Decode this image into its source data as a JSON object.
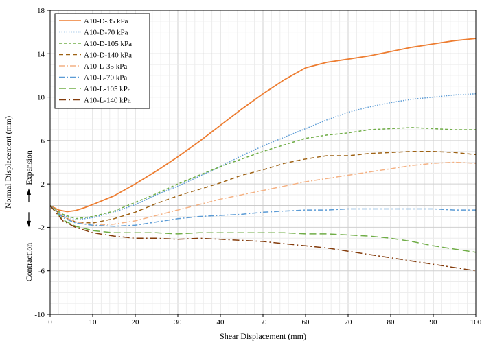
{
  "chart_data": {
    "type": "line",
    "title": "",
    "xlabel": "Shear Displacement (mm)",
    "ylabel": "Normal Displacement (mm)",
    "ylabel_expansion": "Expansion",
    "ylabel_contraction": "Contraction",
    "xlim": [
      0,
      100
    ],
    "ylim": [
      -10,
      18
    ],
    "x_ticks": [
      0,
      10,
      20,
      30,
      40,
      50,
      60,
      70,
      80,
      90,
      100
    ],
    "y_ticks": [
      -10,
      -6,
      -2,
      2,
      6,
      10,
      14,
      18
    ],
    "grid": true,
    "legend_position": "top-left",
    "series": [
      {
        "name": "A10-D-35 kPa",
        "color": "#ED7D31",
        "dash": "solid",
        "x": [
          0,
          2,
          4,
          6,
          8,
          10,
          15,
          20,
          25,
          30,
          35,
          40,
          45,
          50,
          55,
          60,
          65,
          70,
          75,
          80,
          85,
          90,
          95,
          100
        ],
        "y": [
          0,
          -0.4,
          -0.55,
          -0.45,
          -0.2,
          0.1,
          0.9,
          2.0,
          3.2,
          4.5,
          5.9,
          7.4,
          8.9,
          10.3,
          11.6,
          12.7,
          13.2,
          13.5,
          13.8,
          14.2,
          14.6,
          14.9,
          15.2,
          15.4
        ]
      },
      {
        "name": "A10-D-70 kPa",
        "color": "#5B9BD5",
        "dash": "dot",
        "x": [
          0,
          3,
          6,
          10,
          15,
          20,
          25,
          30,
          35,
          40,
          45,
          50,
          55,
          60,
          65,
          70,
          75,
          80,
          85,
          90,
          95,
          100
        ],
        "y": [
          0,
          -0.9,
          -1.3,
          -1.1,
          -0.6,
          0.1,
          1.0,
          1.8,
          2.7,
          3.6,
          4.6,
          5.5,
          6.3,
          7.1,
          7.9,
          8.6,
          9.1,
          9.5,
          9.8,
          10.0,
          10.2,
          10.3
        ]
      },
      {
        "name": "A10-D-105 kPa",
        "color": "#70AD47",
        "dash": "dash-short",
        "x": [
          0,
          3,
          6,
          10,
          15,
          20,
          25,
          30,
          35,
          40,
          45,
          50,
          55,
          60,
          65,
          70,
          75,
          80,
          85,
          90,
          95,
          100
        ],
        "y": [
          0,
          -0.8,
          -1.2,
          -1.0,
          -0.5,
          0.3,
          1.1,
          2.0,
          2.8,
          3.6,
          4.3,
          5.0,
          5.6,
          6.2,
          6.5,
          6.7,
          7.0,
          7.1,
          7.2,
          7.1,
          7.0,
          7.0
        ]
      },
      {
        "name": "A10-D-140 kPa",
        "color": "#9E6214",
        "dash": "dash",
        "x": [
          0,
          3,
          6,
          10,
          15,
          20,
          25,
          30,
          35,
          40,
          45,
          50,
          55,
          60,
          65,
          70,
          75,
          80,
          85,
          90,
          95,
          100
        ],
        "y": [
          0,
          -1.0,
          -1.5,
          -1.6,
          -1.2,
          -0.6,
          0.2,
          0.9,
          1.5,
          2.1,
          2.8,
          3.3,
          3.9,
          4.3,
          4.6,
          4.6,
          4.8,
          4.9,
          5.0,
          5.0,
          4.9,
          4.7
        ]
      },
      {
        "name": "A10-L-35 kPa",
        "color": "#F4B183",
        "dash": "dash-dot",
        "x": [
          0,
          3,
          6,
          10,
          15,
          20,
          25,
          30,
          35,
          40,
          45,
          50,
          55,
          60,
          65,
          70,
          75,
          80,
          85,
          90,
          95,
          100
        ],
        "y": [
          0,
          -1.0,
          -1.5,
          -1.8,
          -1.7,
          -1.4,
          -0.9,
          -0.4,
          0.1,
          0.6,
          1.0,
          1.4,
          1.8,
          2.2,
          2.5,
          2.8,
          3.1,
          3.4,
          3.7,
          3.9,
          4.0,
          3.9
        ]
      },
      {
        "name": "A10-L-70 kPa",
        "color": "#5B9BD5",
        "dash": "dash-dot",
        "x": [
          0,
          3,
          6,
          10,
          15,
          20,
          25,
          30,
          35,
          40,
          45,
          50,
          55,
          60,
          65,
          70,
          75,
          80,
          85,
          90,
          95,
          100
        ],
        "y": [
          0,
          -1.1,
          -1.6,
          -1.8,
          -1.9,
          -1.8,
          -1.5,
          -1.2,
          -1.0,
          -0.9,
          -0.8,
          -0.6,
          -0.5,
          -0.4,
          -0.4,
          -0.3,
          -0.3,
          -0.3,
          -0.3,
          -0.3,
          -0.4,
          -0.4
        ]
      },
      {
        "name": "A10-L-105 kPa",
        "color": "#70AD47",
        "dash": "long-dash",
        "x": [
          0,
          3,
          6,
          10,
          15,
          20,
          25,
          30,
          35,
          40,
          45,
          50,
          55,
          60,
          65,
          70,
          75,
          80,
          85,
          90,
          95,
          100
        ],
        "y": [
          0,
          -1.3,
          -1.9,
          -2.3,
          -2.5,
          -2.5,
          -2.5,
          -2.6,
          -2.5,
          -2.5,
          -2.5,
          -2.5,
          -2.5,
          -2.6,
          -2.6,
          -2.7,
          -2.8,
          -3.0,
          -3.3,
          -3.7,
          -4.0,
          -4.3
        ]
      },
      {
        "name": "A10-L-140 kPa",
        "color": "#843C0C",
        "dash": "long-dash-dot",
        "x": [
          0,
          3,
          6,
          10,
          15,
          20,
          25,
          30,
          35,
          40,
          45,
          50,
          55,
          60,
          65,
          70,
          75,
          80,
          85,
          90,
          95,
          100
        ],
        "y": [
          0,
          -1.4,
          -2.0,
          -2.5,
          -2.8,
          -3.0,
          -3.0,
          -3.1,
          -3.0,
          -3.1,
          -3.2,
          -3.3,
          -3.5,
          -3.7,
          -3.9,
          -4.2,
          -4.5,
          -4.8,
          -5.1,
          -5.4,
          -5.7,
          -6.0
        ]
      }
    ]
  }
}
